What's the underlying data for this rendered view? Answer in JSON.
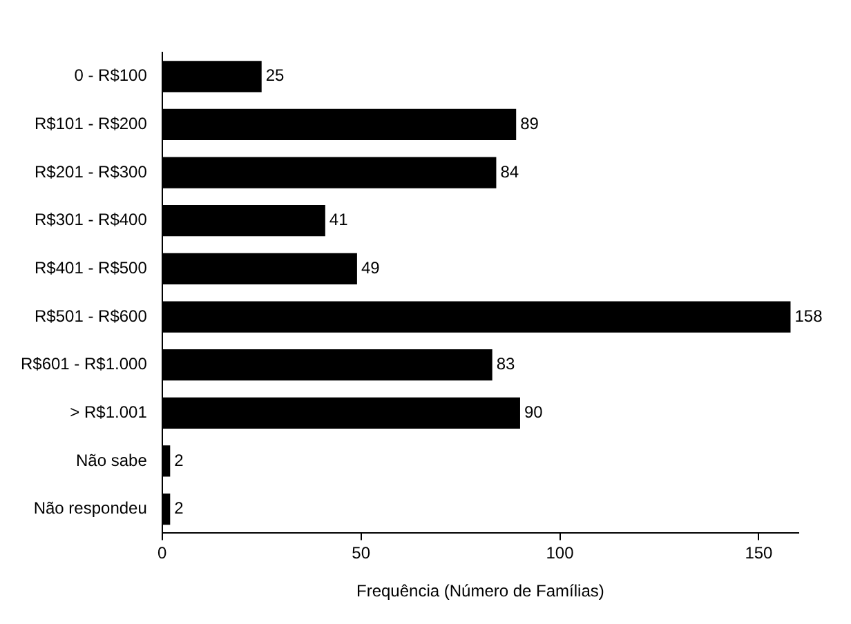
{
  "chart_data": {
    "type": "bar",
    "orientation": "horizontal",
    "xlabel": "Frequência (Número de Famílias)",
    "categories": [
      "0 - R$100",
      "R$101 - R$200",
      "R$201 - R$300",
      "R$301 - R$400",
      "R$401 - R$500",
      "R$501 - R$600",
      "R$601 - R$1.000",
      "> R$1.001",
      "Não sabe",
      "Não respondeu"
    ],
    "values": [
      25,
      89,
      84,
      41,
      49,
      158,
      83,
      90,
      2,
      2
    ],
    "color": "#000000",
    "xlim": [
      0,
      160
    ],
    "xticks": [
      0,
      50,
      100,
      150
    ],
    "data_labels": true
  }
}
